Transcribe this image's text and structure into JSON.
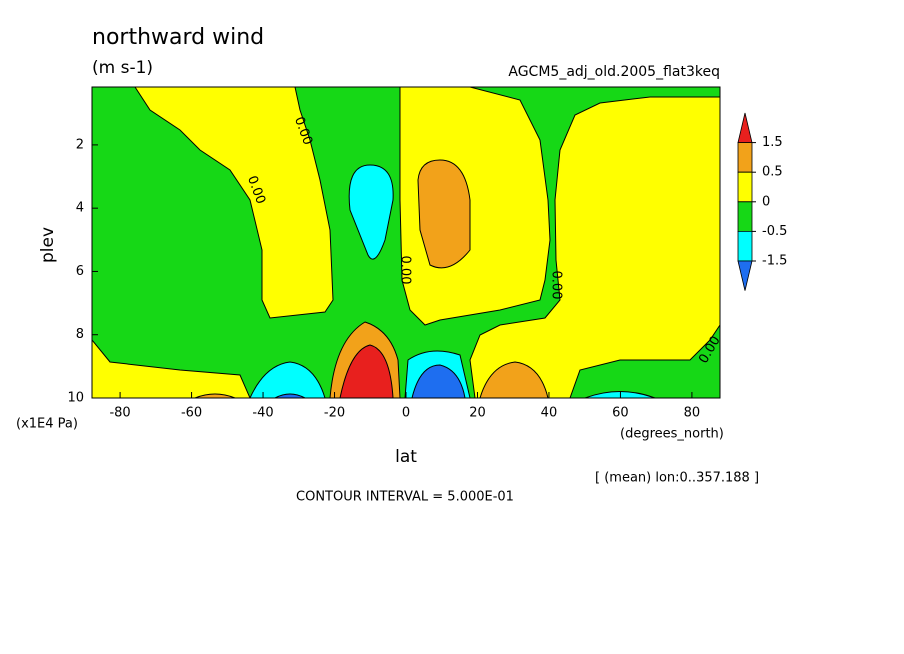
{
  "chart_data": {
    "type": "contour",
    "title": "northward wind",
    "subtitle": "(m s-1)",
    "dataset": "AGCM5_adj_old.2005_flat3keq",
    "x_label": "lat",
    "x_unit": "(degrees_north)",
    "y_label": "plev",
    "y_unit": "(x1E4 Pa)",
    "xlim": [
      -87.86,
      87.86
    ],
    "xticks": [
      -80,
      -60,
      -40,
      -20,
      0,
      20,
      40,
      60,
      80
    ],
    "ylim": [
      10,
      0.17
    ],
    "yticks": [
      2,
      4,
      6,
      8,
      10
    ],
    "note": "[ (mean) lon:0..357.188 ]",
    "contour_interval": "CONTOUR INTERVAL = 5.000E-01",
    "contour_labels": [
      "0.00",
      "0.00",
      "0.00",
      "0.00",
      "0.00"
    ],
    "colorbar": {
      "levels": [
        1.5,
        0.5,
        0,
        -0.5,
        -1.5
      ],
      "colors": [
        "#e8201e",
        "#f2a21a",
        "#ffff00",
        "#16d816",
        "#00ffff",
        "#1e6ef0"
      ]
    }
  }
}
